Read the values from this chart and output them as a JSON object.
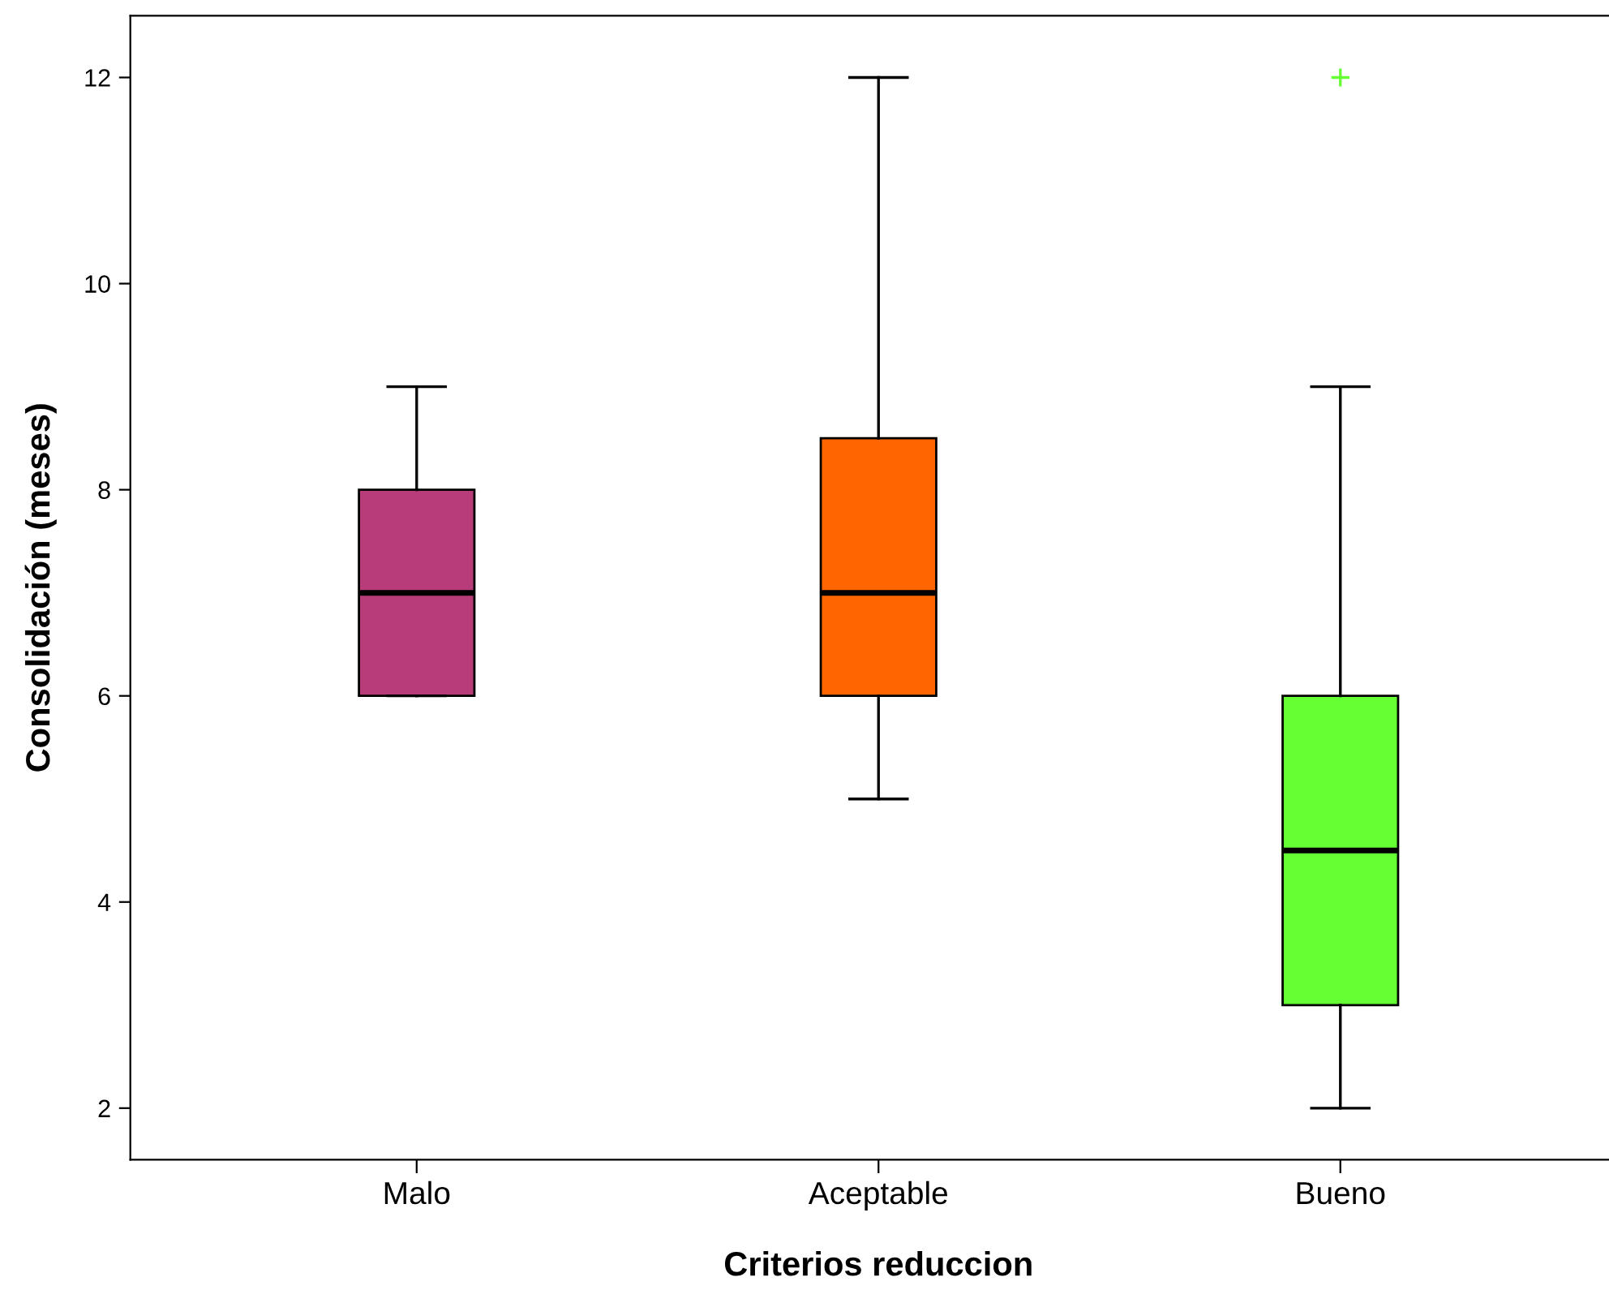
{
  "chart_data": {
    "type": "box",
    "xlabel": "Criterios reduccion",
    "ylabel": "Consolidación (meses)",
    "categories": [
      "Malo",
      "Aceptable",
      "Bueno"
    ],
    "colors": [
      "#b83c7a",
      "#ff6600",
      "#66ff33"
    ],
    "boxes": [
      {
        "low": 6,
        "q1": 6,
        "median": 7,
        "q3": 8,
        "high": 9
      },
      {
        "low": 5,
        "q1": 6,
        "median": 7,
        "q3": 8.5,
        "high": 12
      },
      {
        "low": 2,
        "q1": 3,
        "median": 4.5,
        "q3": 6,
        "high": 9,
        "outliers": [
          12
        ]
      }
    ],
    "ylim": [
      1.5,
      12.6
    ],
    "yticks": [
      2,
      4,
      6,
      8,
      10,
      12
    ],
    "grid": false
  }
}
